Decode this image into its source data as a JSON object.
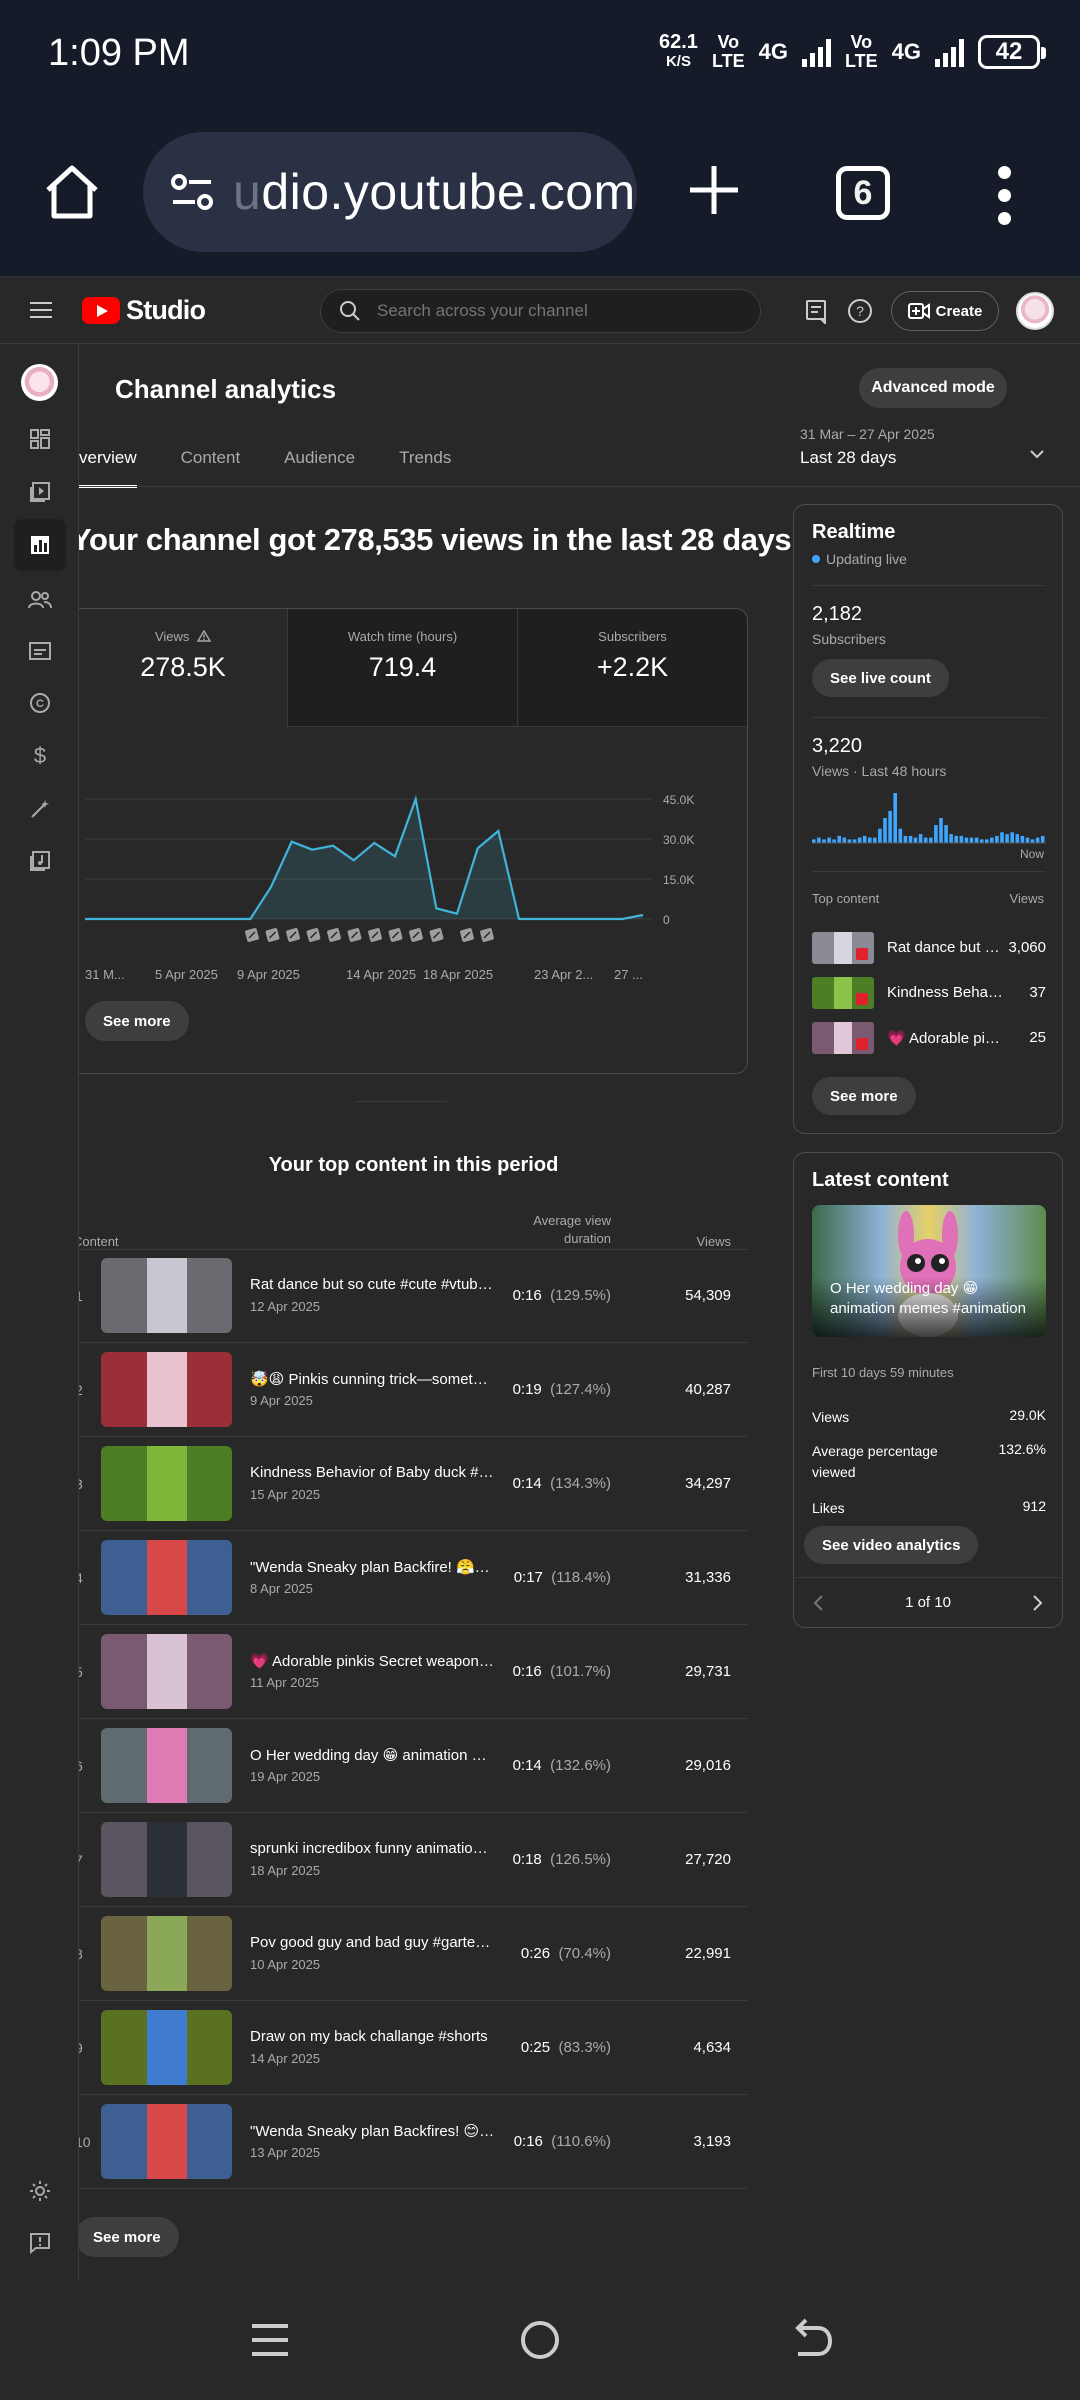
{
  "status_bar": {
    "time": "1:09 PM",
    "speed_value": "62.1",
    "speed_unit": "K/S",
    "vo1": "Vo",
    "lte1": "LTE",
    "net1": "4G",
    "vo2": "Vo",
    "lte2": "LTE",
    "net2": "4G",
    "battery": "42"
  },
  "browser": {
    "url_faded": "u",
    "url": "dio.youtube.com",
    "tab_count": "6"
  },
  "header": {
    "brand": "Studio",
    "search_placeholder": "Search across your channel",
    "create_label": "Create"
  },
  "page": {
    "title": "Channel analytics",
    "advanced_mode": "Advanced mode",
    "tabs": [
      "verview",
      "Content",
      "Audience",
      "Trends"
    ],
    "date_range": "31 Mar – 27 Apr 2025",
    "date_label": "Last 28 days",
    "headline": "Your channel got 278,535 views in the last 28 days"
  },
  "metrics": [
    {
      "label": "Views",
      "value": "278.5K"
    },
    {
      "label": "Watch time (hours)",
      "value": "719.4"
    },
    {
      "label": "Subscribers",
      "value": "+2.2K"
    }
  ],
  "chart_data": {
    "type": "line",
    "title": "",
    "x": [
      "31 Mar",
      "1 Apr",
      "2 Apr",
      "3 Apr",
      "4 Apr",
      "5 Apr",
      "6 Apr",
      "7 Apr",
      "8 Apr",
      "9 Apr",
      "10 Apr",
      "11 Apr",
      "12 Apr",
      "13 Apr",
      "14 Apr",
      "15 Apr",
      "16 Apr",
      "17 Apr",
      "18 Apr",
      "19 Apr",
      "20 Apr",
      "21 Apr",
      "22 Apr",
      "23 Apr",
      "24 Apr",
      "25 Apr",
      "26 Apr",
      "27 Apr"
    ],
    "series": [
      {
        "values": [
          0,
          0,
          0,
          0,
          0,
          0,
          0,
          0,
          0,
          12000,
          29000,
          26000,
          27500,
          22000,
          28500,
          23500,
          45000,
          4000,
          2000,
          26500,
          33000,
          0,
          0,
          0,
          0,
          0,
          0,
          1500
        ]
      }
    ],
    "x_tick_labels": [
      "31 M...",
      "5 Apr 2025",
      "9 Apr 2025",
      "14 Apr 2025",
      "18 Apr 2025",
      "23 Apr 2...",
      "27 ..."
    ],
    "y_tick_labels": [
      "45.0K",
      "30.0K",
      "15.0K",
      "0"
    ],
    "ylim": [
      0,
      45000
    ],
    "grid": true,
    "color": "#41b4d9"
  },
  "chart_see_more": "See more",
  "top_content": {
    "title": "Your top content in this period",
    "col_content": "Content",
    "col_avd": "Average view duration",
    "col_views": "Views",
    "rows": [
      {
        "rank": "1",
        "title": "Rat dance but so cute #cute #vtuber #animation",
        "date": "12 Apr 2025",
        "avd": "0:16",
        "pct": "(129.5%)",
        "views": "54,309",
        "bg": "#6a6a70",
        "fg": "#c9c6d2"
      },
      {
        "rank": "2",
        "title": "🤯😩 Pinkis cunning trick—something unexpected",
        "date": "9 Apr 2025",
        "avd": "0:19",
        "pct": "(127.4%)",
        "views": "40,287",
        "bg": "#9a2f38",
        "fg": "#e8c2cf"
      },
      {
        "rank": "3",
        "title": "Kindness Behavior of Baby duck #animation",
        "date": "15 Apr 2025",
        "avd": "0:14",
        "pct": "(134.3%)",
        "views": "34,297",
        "bg": "#4d7d24",
        "fg": "#7db83a"
      },
      {
        "rank": "4",
        "title": "\"Wenda Sneaky plan Backfire! 😤#shorts",
        "date": "8 Apr 2025",
        "avd": "0:17",
        "pct": "(118.4%)",
        "views": "31,336",
        "bg": "#3d5f92",
        "fg": "#d84848"
      },
      {
        "rank": "5",
        "title": "💗 Adorable pinkis Secret weapon !...",
        "date": "11 Apr 2025",
        "avd": "0:16",
        "pct": "(101.7%)",
        "views": "29,731",
        "bg": "#7a5a70",
        "fg": "#d9c2d3"
      },
      {
        "rank": "6",
        "title": "O Her wedding day 😁 animation memes",
        "date": "19 Apr 2025",
        "avd": "0:14",
        "pct": "(132.6%)",
        "views": "29,016",
        "bg": "#606b70",
        "fg": "#e07ab5"
      },
      {
        "rank": "7",
        "title": "sprunki incredibox funny animation #shorts",
        "date": "18 Apr 2025",
        "avd": "0:18",
        "pct": "(126.5%)",
        "views": "27,720",
        "bg": "#5a5560",
        "fg": "#2b2f36"
      },
      {
        "rank": "8",
        "title": "Pov good guy and bad guy #gartenofbanban",
        "date": "10 Apr 2025",
        "avd": "0:26",
        "pct": "(70.4%)",
        "views": "22,991",
        "bg": "#6a6340",
        "fg": "#8aa857"
      },
      {
        "rank": "9",
        "title": "Draw on my back challange #shorts",
        "date": "14 Apr 2025",
        "avd": "0:25",
        "pct": "(83.3%)",
        "views": "4,634",
        "bg": "#5a7220",
        "fg": "#3f7ccf"
      },
      {
        "rank": "10",
        "title": "\"Wenda Sneaky plan Backfires! 😊 The end",
        "date": "13 Apr 2025",
        "avd": "0:16",
        "pct": "(110.6%)",
        "views": "3,193",
        "bg": "#3d5f92",
        "fg": "#d84848"
      }
    ],
    "see_more": "See more"
  },
  "realtime": {
    "title": "Realtime",
    "status": "Updating live",
    "subs_value": "2,182",
    "subs_label": "Subscribers",
    "live_count_btn": "See live count",
    "views_value": "3,220",
    "views_label": "Views · Last 48 hours",
    "now_label": "Now",
    "bars": [
      2,
      3,
      2,
      3,
      2,
      4,
      3,
      2,
      2,
      3,
      4,
      3,
      3,
      8,
      14,
      18,
      28,
      8,
      4,
      4,
      3,
      5,
      3,
      3,
      10,
      14,
      10,
      5,
      4,
      4,
      3,
      3,
      3,
      2,
      2,
      3,
      4,
      6,
      5,
      6,
      5,
      4,
      3,
      2,
      3,
      4
    ],
    "top_content_label": "Top content",
    "views_col": "Views",
    "top": [
      {
        "name": "Rat dance but so cute",
        "views": "3,060",
        "bg": "#8a8a95",
        "fg": "#d8d4e0"
      },
      {
        "name": "Kindness Behavior of Baby duck",
        "views": "37",
        "bg": "#4d7d24",
        "fg": "#8bc34a"
      },
      {
        "name": "💗 Adorable pinkis Secret weapon",
        "views": "25",
        "bg": "#7a5a70",
        "fg": "#e0c8d8"
      }
    ],
    "see_more": "See more"
  },
  "latest": {
    "title": "Latest content",
    "caption": "O Her wedding day 😁 animation memes #animation",
    "first": "First 10 days 59 minutes",
    "stats": [
      {
        "k": "Views",
        "v": "29.0K"
      },
      {
        "k": "Average percentage viewed",
        "v": "132.6%"
      },
      {
        "k": "Likes",
        "v": "912"
      }
    ],
    "analytics_btn": "See video analytics",
    "pager": "1 of 10"
  }
}
